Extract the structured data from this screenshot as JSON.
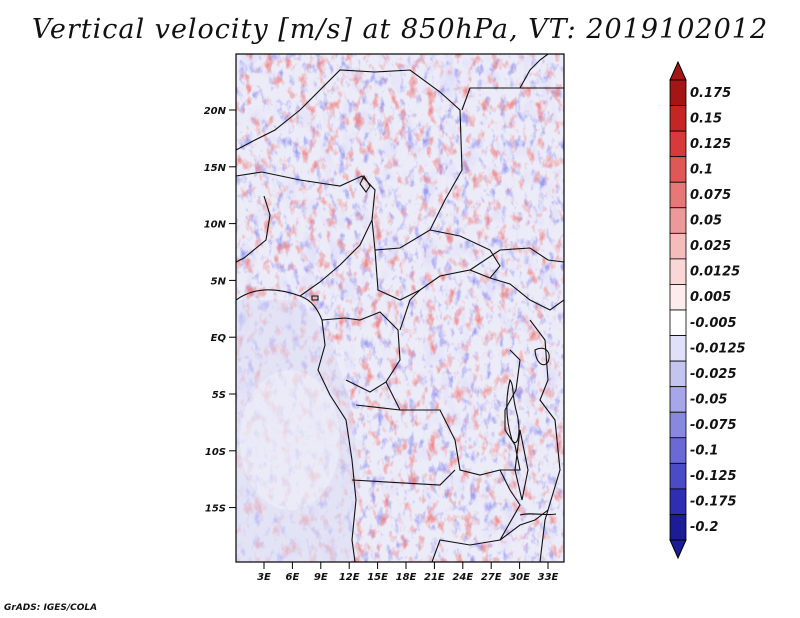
{
  "title": "Vertical velocity [m/s] at 850hPa, VT: 2019102012",
  "credit": "GrADS: IGES/COLA",
  "map": {
    "lat_labels": [
      "20N",
      "15N",
      "10N",
      "5N",
      "EQ",
      "5S",
      "10S",
      "15S"
    ],
    "lon_labels": [
      "3E",
      "6E",
      "9E",
      "12E",
      "15E",
      "18E",
      "21E",
      "24E",
      "27E",
      "30E",
      "33E"
    ]
  },
  "colorbar": {
    "levels": [
      "0.175",
      "0.15",
      "0.125",
      "0.1",
      "0.075",
      "0.05",
      "0.025",
      "0.0125",
      "0.005",
      "-0.005",
      "-0.0125",
      "-0.025",
      "-0.05",
      "-0.075",
      "-0.1",
      "-0.125",
      "-0.175",
      "-0.2"
    ],
    "colors": [
      "#a51515",
      "#c42525",
      "#d63a3a",
      "#e05757",
      "#e87878",
      "#ee9999",
      "#f5bcbc",
      "#f9d7d7",
      "#fcecec",
      "#ffffff",
      "#e0e0f8",
      "#c4c4f0",
      "#a6a6e8",
      "#8888e0",
      "#6a6ad6",
      "#4b4bc8",
      "#2e2eb4",
      "#1c1c96"
    ]
  }
}
